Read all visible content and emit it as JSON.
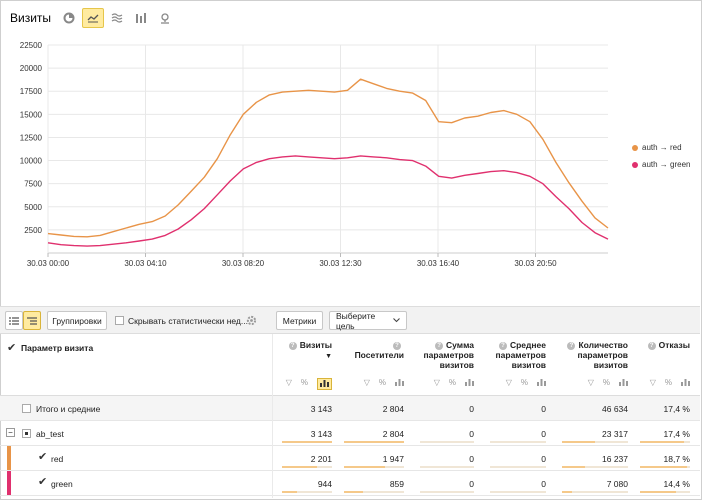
{
  "header": {
    "title": "Визиты"
  },
  "toolbar": {
    "groupings_label": "Группировки",
    "hide_label": "Скрывать статистически нед...",
    "metrics_label": "Метрики",
    "goal_label": "Выберите цель"
  },
  "colors": {
    "red_series": "#e0306e",
    "orange_series": "#e89448",
    "accent": "#ffeba0"
  },
  "chart_data": {
    "type": "line",
    "x_ticks": [
      "30.03 00:00",
      "30.03 04:10",
      "30.03 08:20",
      "30.03 12:30",
      "30.03 16:40",
      "30.03 20:50"
    ],
    "y_ticks": [
      "2500",
      "5000",
      "7500",
      "10000",
      "12500",
      "15000",
      "17500",
      "20000",
      "22500"
    ],
    "ylim": [
      0,
      22500
    ],
    "grid": true,
    "legend_position": "right",
    "series": [
      {
        "name": "auth → red",
        "color": "#e89448",
        "values": [
          2100,
          1950,
          1800,
          1750,
          1900,
          2300,
          2700,
          3100,
          3400,
          4000,
          5200,
          6700,
          8200,
          10200,
          12800,
          15000,
          16300,
          17100,
          17400,
          17500,
          17600,
          17500,
          17400,
          17600,
          18800,
          18300,
          17800,
          17500,
          17300,
          16500,
          14200,
          14100,
          14600,
          14800,
          15200,
          15400,
          15000,
          14200,
          12300,
          9800,
          7600,
          5600,
          3800,
          2700
        ]
      },
      {
        "name": "auth → green",
        "color": "#e0306e",
        "values": [
          1100,
          900,
          800,
          750,
          800,
          950,
          1100,
          1300,
          1500,
          1900,
          2600,
          3600,
          4800,
          6300,
          7800,
          9100,
          9800,
          10200,
          10400,
          10500,
          10400,
          10300,
          10200,
          10300,
          10500,
          10400,
          10300,
          10100,
          10000,
          9400,
          8300,
          8100,
          8400,
          8600,
          8800,
          8900,
          8700,
          8300,
          7500,
          6100,
          4800,
          3300,
          2200,
          1500
        ]
      }
    ]
  },
  "table": {
    "dimension_header": "Параметр визита",
    "columns": [
      {
        "label": "Визиты",
        "sort": "▼"
      },
      {
        "label": "Посетители"
      },
      {
        "label": "Сумма параметров визитов"
      },
      {
        "label": "Среднее параметров визитов"
      },
      {
        "label": "Количество параметров визитов"
      },
      {
        "label": "Отказы"
      }
    ],
    "filter_pct": "%",
    "rows": [
      {
        "label": "Итого и средние",
        "values": [
          "3 143",
          "2 804",
          "0",
          "0",
          "46 634",
          "17,4 %"
        ],
        "shares": [
          1,
          1,
          0,
          0,
          1,
          1
        ]
      },
      {
        "label": "ab_test",
        "values": [
          "3 143",
          "2 804",
          "0",
          "0",
          "23 317",
          "17,4 %"
        ],
        "shares": [
          1,
          1,
          0,
          0,
          0.5,
          0.87
        ]
      },
      {
        "label": "red",
        "values": [
          "2 201",
          "1 947",
          "0",
          "0",
          "16 237",
          "18,7 %"
        ],
        "shares": [
          0.7,
          0.69,
          0,
          0,
          0.35,
          0.93
        ]
      },
      {
        "label": "green",
        "values": [
          "944",
          "859",
          "0",
          "0",
          "7 080",
          "14,4 %"
        ],
        "shares": [
          0.3,
          0.31,
          0,
          0,
          0.15,
          0.72
        ]
      }
    ]
  }
}
